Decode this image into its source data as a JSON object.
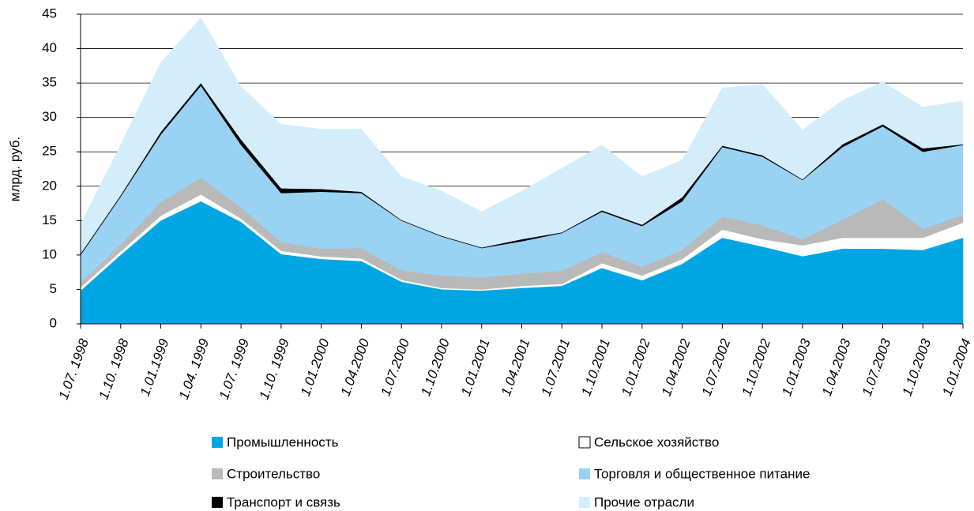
{
  "chart_data": {
    "type": "stacked_area",
    "ylabel": "млрд. руб.",
    "categories": [
      "1.07. 1998",
      "1.10. 1998",
      "1.01.1999",
      "1.04. 1999",
      "1.07. 1999",
      "1.10. 1999",
      "1.01.2000",
      "1.04.2000",
      "1.07.2000",
      "1.10.2000",
      "1.01.2001",
      "1.04.2001",
      "1.07.2001",
      "1.10.2001",
      "1.01.2002",
      "1.04.2002",
      "1.07.2002",
      "1.10.2002",
      "1.01.2003",
      "1.04.2003",
      "1.07.2003",
      "1.10.2003",
      "1.01.2004"
    ],
    "series": [
      {
        "name": "Промышленность",
        "color": "#00a6e4",
        "values": [
          4.8,
          10,
          15,
          17.8,
          14.8,
          10.1,
          9.4,
          9.1,
          6.1,
          5,
          4.8,
          5.2,
          5.5,
          8.1,
          6.3,
          8.7,
          12.5,
          11.2,
          9.8,
          10.9,
          10.9,
          10.7,
          12.5
        ]
      },
      {
        "name": "Сельское хозяйство",
        "color": "#ffffff",
        "values": [
          0.5,
          0.5,
          0.7,
          1.0,
          0.5,
          0.5,
          0.4,
          0.4,
          0.3,
          0.2,
          0.2,
          0.3,
          0.3,
          0.7,
          0.7,
          0.7,
          1.2,
          1.1,
          1.6,
          1.6,
          1.6,
          1.8,
          2.2
        ]
      },
      {
        "name": "Строительство",
        "color": "#b9b9b9",
        "values": [
          0.7,
          1.0,
          2.0,
          2.4,
          1.6,
          1.3,
          1.1,
          1.5,
          1.4,
          1.8,
          1.7,
          1.8,
          1.9,
          1.6,
          1.3,
          1.3,
          1.9,
          2.0,
          0.9,
          2.6,
          5.6,
          1.3,
          1.1
        ]
      },
      {
        "name": "Торговля и общественное питание",
        "color": "#99d2f2",
        "values": [
          4.0,
          7.0,
          9.8,
          13.4,
          9.1,
          7.1,
          8.3,
          8.0,
          7.2,
          5.7,
          4.3,
          4.7,
          5.5,
          5.9,
          5.9,
          7.1,
          10.1,
          10.0,
          8.6,
          10.6,
          10.6,
          11.2,
          10.2
        ]
      },
      {
        "name": "Транспорт и связь",
        "color": "#000000",
        "values": [
          0.2,
          0.2,
          0.4,
          0.4,
          0.8,
          0.7,
          0.4,
          0.2,
          0.1,
          0.1,
          0.1,
          0.3,
          0.1,
          0.2,
          0.2,
          0.6,
          0.2,
          0.2,
          0.1,
          0.4,
          0.3,
          0.5,
          0.1
        ]
      },
      {
        "name": "Прочие отрасли",
        "color": "#d4edfb",
        "values": [
          4.3,
          7.3,
          10.1,
          9.5,
          7.7,
          9.3,
          8.7,
          9.1,
          6.3,
          6.5,
          5.2,
          7.0,
          9.3,
          9.5,
          7.0,
          5.4,
          8.4,
          10.3,
          7.2,
          6.4,
          6.2,
          6.0,
          6.3
        ]
      }
    ],
    "ylim": [
      0,
      45
    ],
    "yticks": [
      0,
      5,
      10,
      15,
      20,
      25,
      30,
      35,
      40,
      45
    ],
    "grid": true
  }
}
